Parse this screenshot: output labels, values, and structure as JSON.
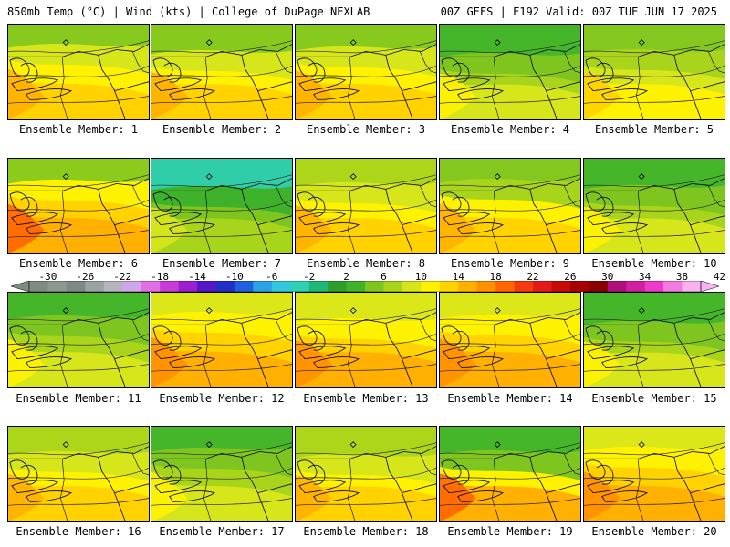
{
  "header": {
    "left": "850mb Temp (°C) | Wind (kts) | College of DuPage NEXLAB",
    "right": "00Z GEFS | F192 Valid: 00Z TUE JUN 17 2025"
  },
  "colorbar": {
    "labels": [
      "-30",
      "-26",
      "-22",
      "-18",
      "-14",
      "-10",
      "-6",
      "-2",
      "2",
      "6",
      "10",
      "14",
      "18",
      "22",
      "26",
      "30",
      "34",
      "38",
      "42"
    ],
    "colors": [
      "#7f8a80",
      "#8e9790",
      "#7e8886",
      "#9aa3a3",
      "#b4b4bf",
      "#cfa6e6",
      "#e26ee6",
      "#c83bd8",
      "#9a1fd0",
      "#5418c8",
      "#2030c8",
      "#1f5fe0",
      "#2aa3e8",
      "#33c8e0",
      "#2fd0b6",
      "#1fb87a",
      "#2c9f2a",
      "#3fb22b",
      "#7fc51f",
      "#a9d41c",
      "#d7e51b",
      "#fff200",
      "#ffd200",
      "#ffb000",
      "#ff9000",
      "#ff6600",
      "#f53a10",
      "#e41a1a",
      "#c80a0a",
      "#a60000",
      "#8a0000",
      "#b0107a",
      "#d21ea0",
      "#ee3ac8",
      "#f27ae0",
      "#f7b3f0"
    ]
  },
  "members": [
    {
      "label": "Ensemble Member: 1",
      "tone": "warm-west"
    },
    {
      "label": "Ensemble Member: 2",
      "tone": "warm-west"
    },
    {
      "label": "Ensemble Member: 3",
      "tone": "warm-west"
    },
    {
      "label": "Ensemble Member: 4",
      "tone": "cool-north"
    },
    {
      "label": "Ensemble Member: 5",
      "tone": "mild"
    },
    {
      "label": "Ensemble Member: 6",
      "tone": "hot-west"
    },
    {
      "label": "Ensemble Member: 7",
      "tone": "cool"
    },
    {
      "label": "Ensemble Member: 8",
      "tone": "warm-south"
    },
    {
      "label": "Ensemble Member: 9",
      "tone": "mixed"
    },
    {
      "label": "Ensemble Member: 10",
      "tone": "cool-east"
    },
    {
      "label": "Ensemble Member: 11",
      "tone": "cool-east"
    },
    {
      "label": "Ensemble Member: 12",
      "tone": "warm"
    },
    {
      "label": "Ensemble Member: 13",
      "tone": "warm"
    },
    {
      "label": "Ensemble Member: 14",
      "tone": "warm"
    },
    {
      "label": "Ensemble Member: 15",
      "tone": "cool-east"
    },
    {
      "label": "Ensemble Member: 16",
      "tone": "warm-south"
    },
    {
      "label": "Ensemble Member: 17",
      "tone": "cool-north"
    },
    {
      "label": "Ensemble Member: 18",
      "tone": "warm-south"
    },
    {
      "label": "Ensemble Member: 19",
      "tone": "mixed-hot"
    },
    {
      "label": "Ensemble Member: 20",
      "tone": "warm"
    }
  ],
  "palette": {
    "green": "#7fc51f",
    "dark_green": "#3fb22b",
    "teal": "#2fd0b6",
    "lime": "#a9d41c",
    "yellow_green": "#d7e51b",
    "yellow": "#fff200",
    "gold": "#ffd200",
    "orange": "#ffb000",
    "dark_orange": "#ff9000",
    "red_orange": "#ff6600",
    "red": "#f53a10"
  }
}
